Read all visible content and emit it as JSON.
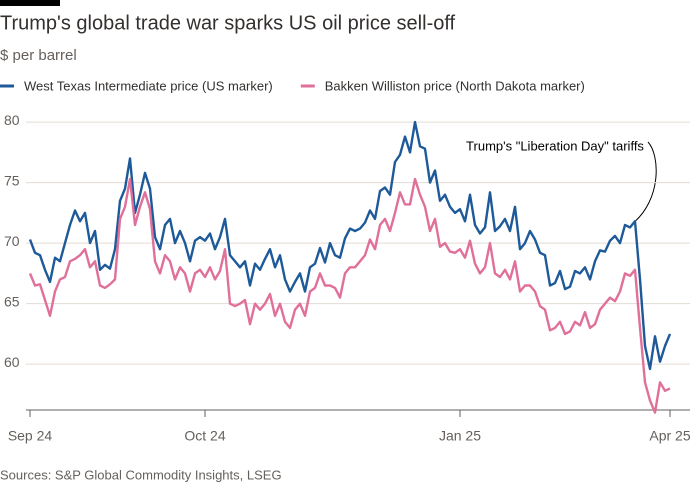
{
  "chart_data": {
    "type": "line",
    "title": "Trump's global trade war sparks US oil price sell-off",
    "subtitle": "$ per barrel",
    "annotation": "Trump's \"Liberation Day\" tariffs",
    "source": "Sources: S&P Global Commodity Insights, LSEG",
    "categories": [
      "Sep 24",
      null,
      null,
      null,
      null,
      null,
      null,
      null,
      null,
      null,
      null,
      null,
      null,
      null,
      null,
      null,
      null,
      null,
      null,
      null,
      null,
      null,
      null,
      null,
      null,
      null,
      null,
      null,
      null,
      null,
      null,
      null,
      null,
      null,
      null,
      "Oct 24",
      null,
      null,
      null,
      null,
      null,
      null,
      null,
      null,
      null,
      null,
      null,
      null,
      null,
      null,
      null,
      null,
      null,
      null,
      null,
      null,
      null,
      null,
      null,
      null,
      null,
      null,
      null,
      null,
      null,
      null,
      null,
      null,
      null,
      null,
      null,
      null,
      null,
      null,
      null,
      null,
      null,
      null,
      null,
      null,
      null,
      null,
      null,
      null,
      null,
      null,
      "Jan 25",
      null,
      null,
      null,
      null,
      null,
      null,
      null,
      null,
      null,
      null,
      null,
      null,
      null,
      null,
      null,
      null,
      null,
      null,
      null,
      null,
      null,
      null,
      null,
      null,
      null,
      null,
      null,
      null,
      null,
      null,
      null,
      null,
      null,
      null,
      null,
      null,
      null,
      null,
      null,
      null,
      null,
      "Apr 25"
    ],
    "series": [
      {
        "name": "West Texas Intermediate price (US marker)",
        "color": "#1e5a99",
        "values": [
          70.3,
          69.2,
          69.0,
          67.8,
          66.8,
          68.8,
          68.5,
          70.0,
          71.5,
          72.7,
          71.8,
          72.5,
          70.0,
          71.0,
          67.8,
          68.2,
          67.9,
          69.5,
          73.5,
          74.5,
          77.0,
          72.5,
          74.0,
          75.8,
          74.5,
          70.5,
          69.5,
          71.5,
          72.0,
          70.0,
          71.0,
          70.0,
          68.5,
          70.2,
          70.5,
          70.2,
          70.8,
          69.5,
          70.5,
          72.0,
          69.0,
          68.5,
          68.0,
          68.5,
          66.5,
          68.3,
          67.8,
          68.7,
          69.5,
          68.0,
          69.0,
          67.0,
          66.0,
          66.8,
          67.5,
          66.0,
          68.0,
          68.3,
          69.6,
          68.4,
          70.0,
          69.0,
          68.8,
          70.4,
          71.2,
          71.0,
          71.2,
          71.7,
          72.7,
          72.0,
          74.3,
          74.6,
          74.0,
          76.7,
          77.3,
          78.8,
          77.5,
          80.0,
          78.0,
          77.8,
          75.0,
          76.0,
          73.5,
          74.0,
          73.0,
          72.5,
          72.8,
          71.8,
          74.0,
          71.5,
          70.8,
          71.3,
          74.2,
          71.0,
          71.4,
          72.0,
          71.0,
          73.0,
          69.5,
          70.0,
          71.0,
          70.3,
          69.2,
          69.0,
          66.5,
          66.7,
          67.7,
          66.2,
          66.4,
          67.7,
          67.5,
          68.0,
          67.0,
          68.5,
          69.4,
          69.3,
          70.2,
          70.6,
          70.0,
          71.5,
          71.3,
          71.8,
          67.0,
          61.5,
          59.6,
          62.3,
          60.2,
          61.5,
          62.5
        ]
      },
      {
        "name": "Bakken Williston price (North Dakota marker)",
        "color": "#e0709a",
        "values": [
          67.5,
          66.5,
          66.6,
          65.3,
          64.0,
          66.0,
          67.0,
          67.2,
          68.5,
          68.7,
          69.0,
          69.5,
          68.0,
          68.5,
          66.5,
          66.3,
          66.6,
          67.0,
          72.0,
          73.0,
          75.3,
          71.5,
          73.0,
          74.2,
          72.8,
          68.5,
          67.5,
          69.0,
          68.5,
          67.0,
          68.0,
          67.5,
          66.0,
          67.5,
          67.8,
          67.2,
          68.0,
          67.0,
          67.7,
          69.5,
          65.0,
          64.8,
          65.0,
          65.3,
          63.3,
          65.0,
          64.5,
          65.0,
          65.8,
          64.0,
          65.0,
          63.5,
          63.0,
          64.5,
          65.0,
          64.0,
          66.0,
          66.3,
          67.5,
          66.5,
          66.5,
          66.3,
          65.5,
          67.5,
          68.0,
          68.0,
          68.5,
          69.0,
          70.3,
          69.5,
          71.5,
          72.0,
          71.0,
          72.5,
          74.2,
          73.2,
          73.2,
          75.3,
          74.0,
          73.0,
          71.0,
          72.0,
          69.7,
          70.0,
          69.3,
          69.2,
          69.5,
          68.8,
          70.2,
          68.3,
          67.5,
          68.0,
          70.0,
          67.5,
          67.2,
          67.8,
          67.0,
          68.5,
          66.0,
          66.5,
          66.5,
          66.0,
          64.8,
          64.5,
          62.8,
          63.0,
          63.5,
          62.5,
          62.7,
          63.5,
          63.2,
          64.3,
          63.0,
          63.3,
          64.5,
          65.0,
          65.5,
          65.2,
          66.0,
          67.5,
          67.3,
          67.8,
          63.0,
          58.5,
          57.0,
          56.0,
          58.5,
          57.8,
          58.0
        ]
      }
    ],
    "ylim": [
      55.8,
      81
    ],
    "yticks": [
      60,
      65,
      70,
      75,
      80
    ],
    "grid": true
  }
}
